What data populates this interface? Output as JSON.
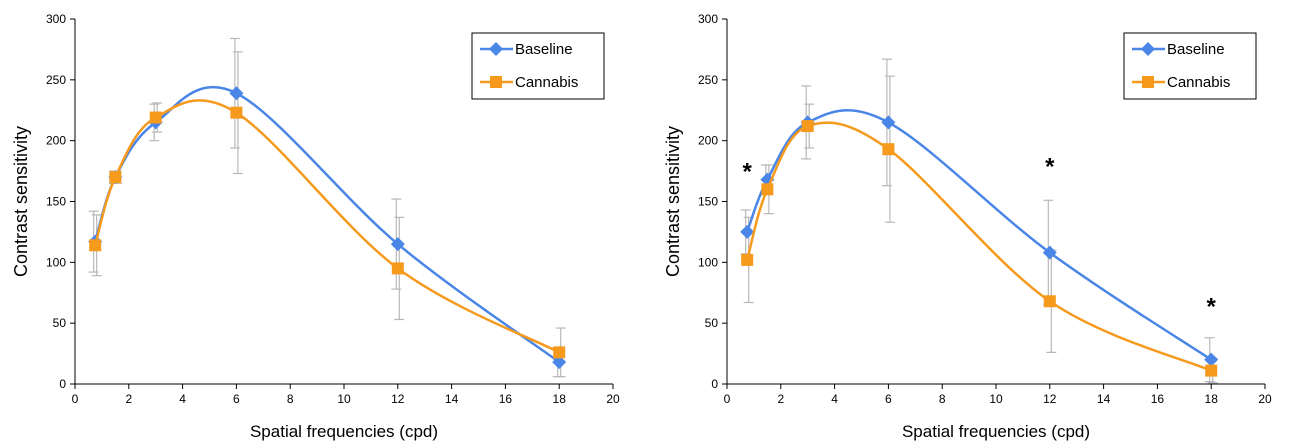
{
  "chart_data": [
    {
      "type": "line",
      "title": "",
      "xlabel": "Spatial frequencies (cpd)",
      "ylabel": "Contrast sensitivity",
      "xlim": [
        0,
        20
      ],
      "ylim": [
        0,
        300
      ],
      "xticks": [
        "0",
        "2",
        "4",
        "6",
        "8",
        "10",
        "12",
        "14",
        "16",
        "18",
        "20"
      ],
      "yticks": [
        "0",
        "50",
        "100",
        "150",
        "200",
        "250",
        "300"
      ],
      "grid": false,
      "legend_position": "top-right",
      "x": [
        0.75,
        1.5,
        3,
        6,
        12,
        18
      ],
      "series": [
        {
          "name": "Baseline",
          "color": "#4a86e8",
          "marker": "diamond",
          "values": [
            117,
            170,
            215,
            239,
            115,
            18
          ],
          "error": [
            25,
            5,
            15,
            45,
            37,
            12
          ]
        },
        {
          "name": "Cannabis",
          "color": "#f59a1c",
          "marker": "square",
          "values": [
            114,
            170,
            219,
            223,
            95,
            26
          ],
          "error": [
            25,
            5,
            12,
            50,
            42,
            20
          ]
        }
      ],
      "annotations": []
    },
    {
      "type": "line",
      "title": "",
      "xlabel": "Spatial frequencies (cpd)",
      "ylabel": "Contrast sensitivity",
      "xlim": [
        0,
        20
      ],
      "ylim": [
        0,
        300
      ],
      "xticks": [
        "0",
        "2",
        "4",
        "6",
        "8",
        "10",
        "12",
        "14",
        "16",
        "18",
        "20"
      ],
      "yticks": [
        "0",
        "50",
        "100",
        "150",
        "200",
        "250",
        "300"
      ],
      "grid": false,
      "legend_position": "top-right",
      "x": [
        0.75,
        1.5,
        3,
        6,
        12,
        18
      ],
      "series": [
        {
          "name": "Baseline",
          "color": "#4a86e8",
          "marker": "diamond",
          "values": [
            125,
            168,
            215,
            215,
            108,
            20
          ],
          "error": [
            18,
            12,
            30,
            52,
            43,
            18
          ]
        },
        {
          "name": "Cannabis",
          "color": "#f59a1c",
          "marker": "square",
          "values": [
            102,
            160,
            212,
            193,
            68,
            11
          ],
          "error": [
            35,
            20,
            18,
            60,
            42,
            10
          ]
        }
      ],
      "annotations": [
        {
          "text": "*",
          "x": 0.75,
          "y": 168
        },
        {
          "text": "*",
          "x": 12,
          "y": 172
        },
        {
          "text": "*",
          "x": 18,
          "y": 57
        }
      ]
    }
  ]
}
